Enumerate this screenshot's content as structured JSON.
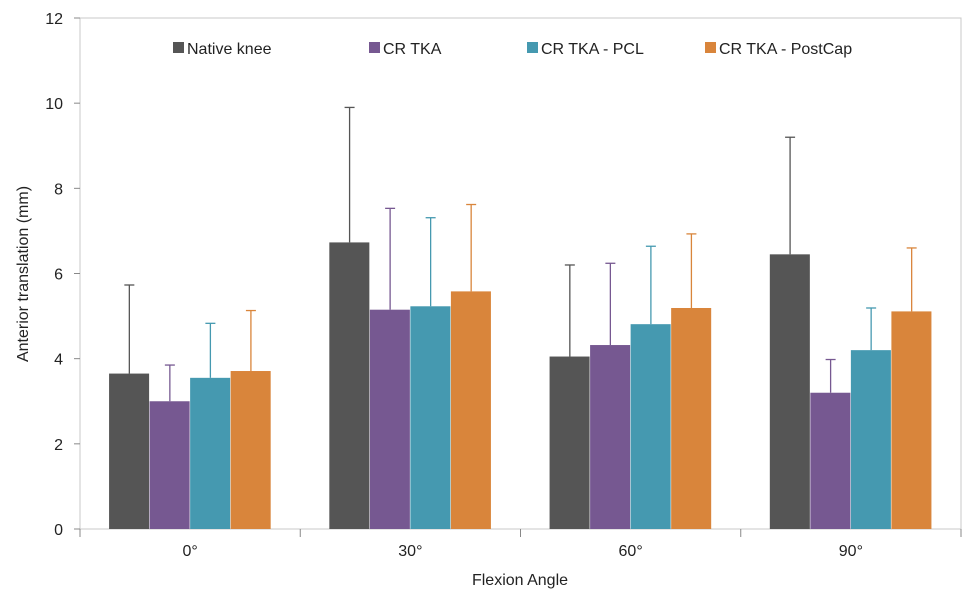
{
  "chart_data": {
    "type": "bar",
    "title": "",
    "xlabel": "Flexion Angle",
    "ylabel": "Anterior translation (mm)",
    "ylim": [
      0,
      12
    ],
    "yticks": [
      0,
      2,
      4,
      6,
      8,
      10,
      12
    ],
    "categories": [
      "0°",
      "30°",
      "60°",
      "90°"
    ],
    "legend_position": "top",
    "grid": false,
    "series": [
      {
        "name": "Native knee",
        "color": "#555555",
        "values": [
          3.65,
          6.73,
          4.05,
          6.45
        ],
        "error": [
          2.08,
          3.17,
          2.15,
          2.75
        ]
      },
      {
        "name": "CR TKA",
        "color": "#765891",
        "values": [
          3.0,
          5.15,
          4.32,
          3.2
        ],
        "error": [
          0.85,
          2.38,
          1.92,
          0.78
        ]
      },
      {
        "name": "CR TKA - PCL",
        "color": "#4599B0",
        "values": [
          3.55,
          5.23,
          4.81,
          4.2
        ],
        "error": [
          1.28,
          2.08,
          1.83,
          0.99
        ]
      },
      {
        "name": "CR TKA - PostCap",
        "color": "#D9853B",
        "values": [
          3.71,
          5.58,
          5.19,
          5.11
        ],
        "error": [
          1.42,
          2.04,
          1.74,
          1.49
        ]
      }
    ]
  }
}
